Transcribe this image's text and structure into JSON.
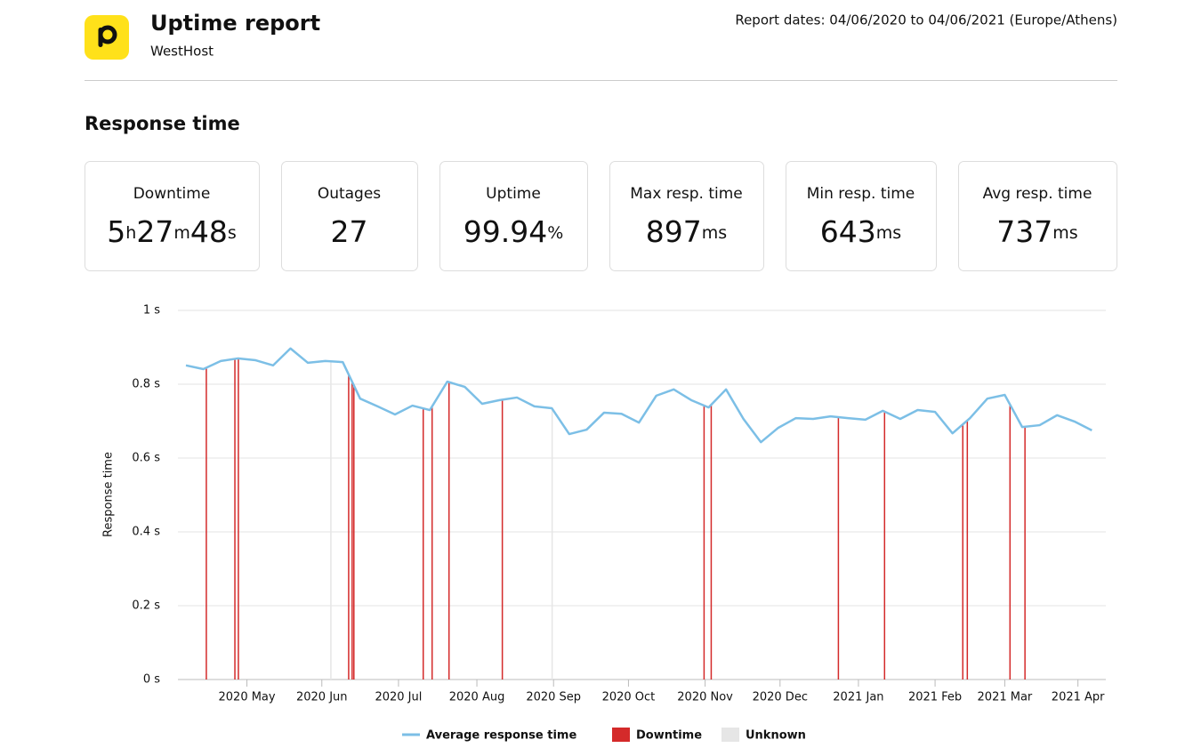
{
  "header": {
    "title": "Uptime report",
    "subtitle": "WestHost",
    "report_dates": "Report dates: 04/06/2020 to 04/06/2021 (Europe/Athens)"
  },
  "section_title": "Response time",
  "stats": [
    {
      "label": "Downtime",
      "parts": [
        {
          "num": "5",
          "unit": "h"
        },
        {
          "num": "27",
          "unit": "m"
        },
        {
          "num": "48",
          "unit": "s"
        }
      ]
    },
    {
      "label": "Outages",
      "parts": [
        {
          "num": "27"
        }
      ]
    },
    {
      "label": "Uptime",
      "parts": [
        {
          "num": "99.94",
          "unit": "%"
        }
      ]
    },
    {
      "label": "Max resp. time",
      "parts": [
        {
          "num": "897",
          "unit": "ms"
        }
      ]
    },
    {
      "label": "Min resp. time",
      "parts": [
        {
          "num": "643",
          "unit": "ms"
        }
      ]
    },
    {
      "label": "Avg resp. time",
      "parts": [
        {
          "num": "737",
          "unit": "ms"
        }
      ]
    }
  ],
  "chart_data": {
    "type": "line",
    "y_label": "Response time",
    "categories": [
      null,
      null,
      null,
      null,
      null,
      null,
      null,
      null,
      null,
      null,
      null,
      null,
      null,
      null,
      null,
      null,
      null,
      null,
      null,
      null,
      null,
      null,
      null,
      null,
      null,
      null,
      null,
      null,
      null,
      null,
      null,
      null,
      null,
      null,
      null,
      null,
      null,
      null,
      null,
      null,
      null,
      null,
      null,
      null,
      null,
      null,
      null,
      null,
      null,
      null,
      null,
      null,
      null
    ],
    "series": [
      {
        "name": "Average response time",
        "color": "#7cbfe6",
        "values": [
          0.851,
          0.841,
          0.863,
          0.87,
          0.865,
          0.851,
          0.897,
          0.858,
          0.863,
          0.86,
          0.761,
          0.74,
          0.718,
          0.742,
          0.73,
          0.807,
          0.793,
          0.747,
          0.757,
          0.764,
          0.74,
          0.735,
          0.665,
          0.677,
          0.723,
          0.72,
          0.696,
          0.769,
          0.786,
          0.757,
          0.737,
          0.786,
          0.706,
          0.643,
          0.682,
          0.708,
          0.706,
          0.713,
          0.708,
          0.704,
          0.728,
          0.706,
          0.73,
          0.725,
          0.667,
          0.708,
          0.761,
          0.771,
          0.684,
          0.689,
          0.716,
          0.699,
          0.675
        ]
      }
    ],
    "downtime": {
      "name": "Downtime",
      "color": "#d42a2a",
      "x": [
        1.17,
        2.81,
        3.01,
        9.34,
        9.54,
        9.64,
        13.62,
        14.13,
        15.1,
        18.16,
        29.74,
        30.15,
        37.45,
        40.1,
        44.59,
        44.85,
        47.3,
        48.16
      ]
    },
    "unknown": {
      "name": "Unknown",
      "color": "#e6e6e6",
      "x": [
        8.32,
        21.02
      ]
    },
    "xlim": [
      -0.46,
      52.8
    ],
    "xticks": [
      {
        "value": 3.5,
        "label": "2020 May"
      },
      {
        "value": 7.8,
        "label": "2020 Jun"
      },
      {
        "value": 12.2,
        "label": "2020 Jul"
      },
      {
        "value": 16.7,
        "label": "2020 Aug"
      },
      {
        "value": 21.1,
        "label": "2020 Sep"
      },
      {
        "value": 25.4,
        "label": "2020 Oct"
      },
      {
        "value": 29.8,
        "label": "2020 Nov"
      },
      {
        "value": 34.1,
        "label": "2020 Dec"
      },
      {
        "value": 38.6,
        "label": "2021 Jan"
      },
      {
        "value": 43.0,
        "label": "2021 Feb"
      },
      {
        "value": 47.0,
        "label": "2021 Mar"
      },
      {
        "value": 51.2,
        "label": "2021 Apr"
      }
    ],
    "ylim": [
      0,
      1
    ],
    "yticks": [
      {
        "value": 0,
        "label": "0 s"
      },
      {
        "value": 0.2,
        "label": "0.2 s"
      },
      {
        "value": 0.4,
        "label": "0.4 s"
      },
      {
        "value": 0.6,
        "label": "0.6 s"
      },
      {
        "value": 0.8,
        "label": "0.8 s"
      },
      {
        "value": 1,
        "label": "1 s"
      }
    ],
    "grid": true
  }
}
